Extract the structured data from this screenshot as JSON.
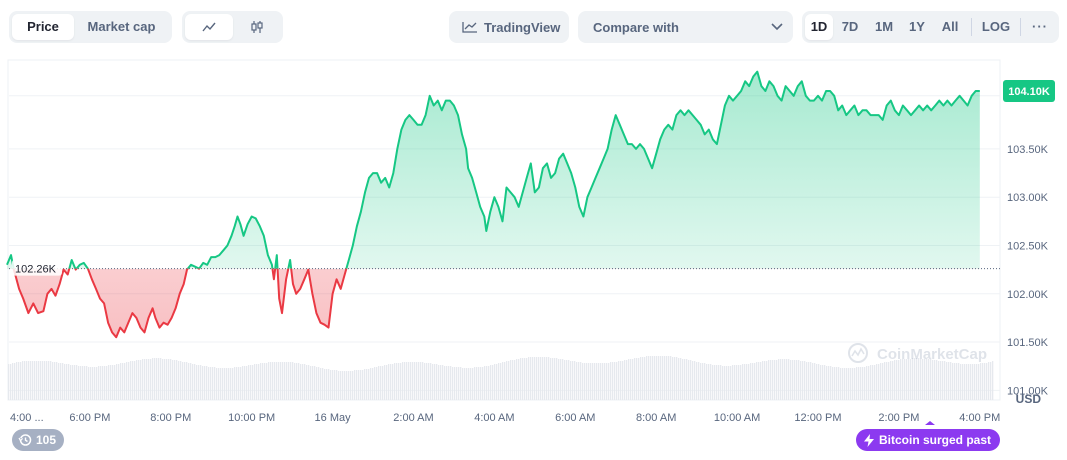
{
  "toolbar": {
    "view_tabs": [
      {
        "label": "Price",
        "active": true
      },
      {
        "label": "Market cap",
        "active": false
      }
    ],
    "chart_types": [
      {
        "icon": "line-chart-icon",
        "active": true
      },
      {
        "icon": "candlestick-icon",
        "active": false
      }
    ],
    "tradingview_label": "TradingView",
    "compare_label": "Compare with",
    "ranges": [
      {
        "label": "1D",
        "active": true
      },
      {
        "label": "7D",
        "active": false
      },
      {
        "label": "1M",
        "active": false
      },
      {
        "label": "1Y",
        "active": false
      },
      {
        "label": "All",
        "active": false
      }
    ],
    "log_label": "LOG",
    "more_label": "···"
  },
  "watermark": "CoinMarketCap",
  "events_badge": {
    "count": "105",
    "icon": "history-icon"
  },
  "news_badge": {
    "text": "Bitcoin surged past ...",
    "icon": "lightning-icon"
  },
  "colors": {
    "up": "#16c784",
    "down": "#ea3943",
    "accent": "#8c3af0"
  },
  "chart_data": {
    "type": "line",
    "currency_label": "USD",
    "baseline": 102260,
    "baseline_label": "102.26K",
    "current_label": "104.10K",
    "ylim": [
      100900,
      104400
    ],
    "y_ticks": [
      {
        "value": 103500,
        "label": "103.50K"
      },
      {
        "value": 103000,
        "label": "103.00K"
      },
      {
        "value": 102500,
        "label": "102.50K"
      },
      {
        "value": 102000,
        "label": "102.00K"
      },
      {
        "value": 101500,
        "label": "101.50K"
      },
      {
        "value": 101000,
        "label": "101.00K"
      }
    ],
    "xlim": [
      16.0,
      40.5
    ],
    "x_ticks": [
      {
        "value": 16.0,
        "label": "4:00 ..."
      },
      {
        "value": 18.0,
        "label": "6:00 PM"
      },
      {
        "value": 20.0,
        "label": "8:00 PM"
      },
      {
        "value": 22.0,
        "label": "10:00 PM"
      },
      {
        "value": 24.0,
        "label": "16 May"
      },
      {
        "value": 26.0,
        "label": "2:00 AM"
      },
      {
        "value": 28.0,
        "label": "4:00 AM"
      },
      {
        "value": 30.0,
        "label": "6:00 AM"
      },
      {
        "value": 32.0,
        "label": "8:00 AM"
      },
      {
        "value": 34.0,
        "label": "10:00 AM"
      },
      {
        "value": 36.0,
        "label": "12:00 PM"
      },
      {
        "value": 38.0,
        "label": "2:00 PM"
      },
      {
        "value": 40.0,
        "label": "4:00 PM"
      }
    ],
    "points": [
      [
        15.95,
        102300
      ],
      [
        16.05,
        102400
      ],
      [
        16.12,
        102250
      ],
      [
        16.25,
        102050
      ],
      [
        16.35,
        101950
      ],
      [
        16.48,
        101800
      ],
      [
        16.6,
        101900
      ],
      [
        16.72,
        101800
      ],
      [
        16.85,
        101820
      ],
      [
        16.95,
        102000
      ],
      [
        17.05,
        102050
      ],
      [
        17.15,
        101980
      ],
      [
        17.25,
        102100
      ],
      [
        17.35,
        102250
      ],
      [
        17.45,
        102200
      ],
      [
        17.55,
        102350
      ],
      [
        17.65,
        102250
      ],
      [
        17.75,
        102300
      ],
      [
        17.85,
        102320
      ],
      [
        17.95,
        102260
      ],
      [
        18.05,
        102150
      ],
      [
        18.15,
        102050
      ],
      [
        18.25,
        101950
      ],
      [
        18.35,
        101900
      ],
      [
        18.45,
        101700
      ],
      [
        18.55,
        101600
      ],
      [
        18.65,
        101550
      ],
      [
        18.75,
        101650
      ],
      [
        18.85,
        101600
      ],
      [
        18.95,
        101700
      ],
      [
        19.05,
        101800
      ],
      [
        19.15,
        101750
      ],
      [
        19.25,
        101650
      ],
      [
        19.35,
        101600
      ],
      [
        19.45,
        101750
      ],
      [
        19.55,
        101850
      ],
      [
        19.62,
        101750
      ],
      [
        19.72,
        101650
      ],
      [
        19.82,
        101700
      ],
      [
        19.92,
        101680
      ],
      [
        20.02,
        101750
      ],
      [
        20.12,
        101850
      ],
      [
        20.22,
        102000
      ],
      [
        20.32,
        102100
      ],
      [
        20.4,
        102250
      ],
      [
        20.5,
        102300
      ],
      [
        20.6,
        102280
      ],
      [
        20.7,
        102260
      ],
      [
        20.8,
        102320
      ],
      [
        20.9,
        102300
      ],
      [
        21.0,
        102380
      ],
      [
        21.1,
        102380
      ],
      [
        21.2,
        102400
      ],
      [
        21.3,
        102450
      ],
      [
        21.4,
        102500
      ],
      [
        21.5,
        102600
      ],
      [
        21.58,
        102700
      ],
      [
        21.65,
        102800
      ],
      [
        21.72,
        102720
      ],
      [
        21.8,
        102600
      ],
      [
        21.9,
        102720
      ],
      [
        22.0,
        102800
      ],
      [
        22.1,
        102780
      ],
      [
        22.2,
        102700
      ],
      [
        22.3,
        102600
      ],
      [
        22.4,
        102400
      ],
      [
        22.5,
        102300
      ],
      [
        22.55,
        102150
      ],
      [
        22.62,
        102400
      ],
      [
        22.68,
        101950
      ],
      [
        22.75,
        101800
      ],
      [
        22.85,
        102150
      ],
      [
        22.95,
        102350
      ],
      [
        23.02,
        102100
      ],
      [
        23.1,
        102000
      ],
      [
        23.2,
        102050
      ],
      [
        23.3,
        102150
      ],
      [
        23.4,
        102250
      ],
      [
        23.5,
        102000
      ],
      [
        23.6,
        101800
      ],
      [
        23.7,
        101700
      ],
      [
        23.8,
        101680
      ],
      [
        23.9,
        101650
      ],
      [
        24.0,
        102000
      ],
      [
        24.1,
        102150
      ],
      [
        24.2,
        102050
      ],
      [
        24.3,
        102200
      ],
      [
        24.4,
        102350
      ],
      [
        24.5,
        102500
      ],
      [
        24.6,
        102700
      ],
      [
        24.7,
        102850
      ],
      [
        24.8,
        103050
      ],
      [
        24.9,
        103200
      ],
      [
        25.0,
        103250
      ],
      [
        25.1,
        103250
      ],
      [
        25.2,
        103150
      ],
      [
        25.3,
        103200
      ],
      [
        25.4,
        103100
      ],
      [
        25.5,
        103250
      ],
      [
        25.6,
        103500
      ],
      [
        25.7,
        103700
      ],
      [
        25.8,
        103800
      ],
      [
        25.9,
        103850
      ],
      [
        26.0,
        103800
      ],
      [
        26.1,
        103750
      ],
      [
        26.2,
        103750
      ],
      [
        26.3,
        103850
      ],
      [
        26.4,
        104050
      ],
      [
        26.5,
        103950
      ],
      [
        26.6,
        104000
      ],
      [
        26.7,
        103900
      ],
      [
        26.8,
        104000
      ],
      [
        26.9,
        104000
      ],
      [
        27.0,
        103950
      ],
      [
        27.1,
        103850
      ],
      [
        27.2,
        103650
      ],
      [
        27.3,
        103500
      ],
      [
        27.35,
        103300
      ],
      [
        27.45,
        103200
      ],
      [
        27.55,
        103050
      ],
      [
        27.65,
        102900
      ],
      [
        27.75,
        102800
      ],
      [
        27.8,
        102650
      ],
      [
        27.9,
        102850
      ],
      [
        28.0,
        103000
      ],
      [
        28.1,
        102900
      ],
      [
        28.2,
        102750
      ],
      [
        28.3,
        103100
      ],
      [
        28.4,
        103050
      ],
      [
        28.5,
        103000
      ],
      [
        28.6,
        102900
      ],
      [
        28.7,
        103050
      ],
      [
        28.8,
        103200
      ],
      [
        28.9,
        103350
      ],
      [
        29.0,
        103050
      ],
      [
        29.1,
        103100
      ],
      [
        29.2,
        103300
      ],
      [
        29.3,
        103350
      ],
      [
        29.4,
        103200
      ],
      [
        29.5,
        103250
      ],
      [
        29.6,
        103400
      ],
      [
        29.7,
        103450
      ],
      [
        29.8,
        103350
      ],
      [
        29.9,
        103250
      ],
      [
        30.0,
        103100
      ],
      [
        30.1,
        102900
      ],
      [
        30.2,
        102800
      ],
      [
        30.3,
        103000
      ],
      [
        30.4,
        103100
      ],
      [
        30.5,
        103200
      ],
      [
        30.6,
        103300
      ],
      [
        30.7,
        103400
      ],
      [
        30.8,
        103500
      ],
      [
        30.9,
        103700
      ],
      [
        31.0,
        103850
      ],
      [
        31.1,
        103750
      ],
      [
        31.2,
        103650
      ],
      [
        31.3,
        103550
      ],
      [
        31.4,
        103550
      ],
      [
        31.5,
        103500
      ],
      [
        31.6,
        103550
      ],
      [
        31.7,
        103500
      ],
      [
        31.8,
        103400
      ],
      [
        31.9,
        103300
      ],
      [
        32.0,
        103450
      ],
      [
        32.1,
        103600
      ],
      [
        32.2,
        103700
      ],
      [
        32.3,
        103750
      ],
      [
        32.4,
        103700
      ],
      [
        32.5,
        103850
      ],
      [
        32.6,
        103900
      ],
      [
        32.7,
        103850
      ],
      [
        32.8,
        103900
      ],
      [
        32.9,
        103850
      ],
      [
        33.0,
        103800
      ],
      [
        33.1,
        103750
      ],
      [
        33.2,
        103650
      ],
      [
        33.3,
        103700
      ],
      [
        33.4,
        103600
      ],
      [
        33.5,
        103550
      ],
      [
        33.6,
        103750
      ],
      [
        33.7,
        103950
      ],
      [
        33.8,
        104050
      ],
      [
        33.9,
        104000
      ],
      [
        34.0,
        104050
      ],
      [
        34.1,
        104100
      ],
      [
        34.2,
        104200
      ],
      [
        34.3,
        104150
      ],
      [
        34.4,
        104250
      ],
      [
        34.5,
        104300
      ],
      [
        34.6,
        104150
      ],
      [
        34.7,
        104100
      ],
      [
        34.8,
        104200
      ],
      [
        34.9,
        104150
      ],
      [
        35.0,
        104050
      ],
      [
        35.1,
        104000
      ],
      [
        35.2,
        104150
      ],
      [
        35.3,
        104100
      ],
      [
        35.4,
        104050
      ],
      [
        35.5,
        104150
      ],
      [
        35.6,
        104200
      ],
      [
        35.7,
        104050
      ],
      [
        35.8,
        104000
      ],
      [
        35.9,
        104000
      ],
      [
        36.0,
        104050
      ],
      [
        36.1,
        104000
      ],
      [
        36.2,
        104100
      ],
      [
        36.3,
        104100
      ],
      [
        36.4,
        104050
      ],
      [
        36.5,
        103900
      ],
      [
        36.6,
        103950
      ],
      [
        36.7,
        103850
      ],
      [
        36.8,
        103900
      ],
      [
        36.9,
        103950
      ],
      [
        37.0,
        103850
      ],
      [
        37.1,
        103900
      ],
      [
        37.2,
        103900
      ],
      [
        37.3,
        103850
      ],
      [
        37.4,
        103850
      ],
      [
        37.5,
        103850
      ],
      [
        37.6,
        103800
      ],
      [
        37.7,
        103950
      ],
      [
        37.8,
        104000
      ],
      [
        37.9,
        103900
      ],
      [
        38.0,
        103850
      ],
      [
        38.1,
        103950
      ],
      [
        38.2,
        103900
      ],
      [
        38.3,
        103850
      ],
      [
        38.4,
        103900
      ],
      [
        38.5,
        103950
      ],
      [
        38.6,
        103900
      ],
      [
        38.7,
        103950
      ],
      [
        38.8,
        103900
      ],
      [
        38.9,
        103950
      ],
      [
        39.0,
        104000
      ],
      [
        39.1,
        103950
      ],
      [
        39.2,
        104000
      ],
      [
        39.3,
        103950
      ],
      [
        39.4,
        104000
      ],
      [
        39.5,
        104050
      ],
      [
        39.6,
        104000
      ],
      [
        39.7,
        103950
      ],
      [
        39.8,
        104050
      ],
      [
        39.9,
        104100
      ],
      [
        40.0,
        104100
      ]
    ]
  }
}
